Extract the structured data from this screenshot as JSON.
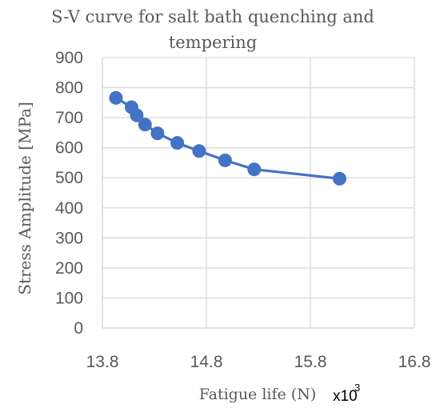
{
  "chart_data": {
    "type": "scatter",
    "title_lines": [
      "S-V curve for salt bath quenching and",
      "tempering"
    ],
    "xlabel": "Fatigue life (N)",
    "x_multiplier": "x10",
    "x_multiplier_exponent": "3",
    "ylabel": "Stress Amplitude [MPa]",
    "xlim": [
      13.8,
      16.8
    ],
    "ylim": [
      0,
      900
    ],
    "x_ticks": [
      13.8,
      14.8,
      15.8,
      16.8
    ],
    "x_tick_labels": [
      "13.8",
      "14.8",
      "15.8",
      "16.8"
    ],
    "y_ticks": [
      0,
      100,
      200,
      300,
      400,
      500,
      600,
      700,
      800,
      900
    ],
    "y_tick_labels": [
      "0",
      "100",
      "200",
      "300",
      "400",
      "500",
      "600",
      "700",
      "800",
      "900"
    ],
    "grid": true,
    "line_connected": true,
    "color": "#4472C4",
    "grid_color": "#D9D9D9",
    "series": [
      {
        "x": [
          13.93,
          14.08,
          14.13,
          14.21,
          14.33,
          14.52,
          14.73,
          14.98,
          15.26,
          16.08
        ],
        "y": [
          766,
          735,
          708,
          677,
          648,
          616,
          589,
          558,
          528,
          497
        ]
      }
    ]
  }
}
